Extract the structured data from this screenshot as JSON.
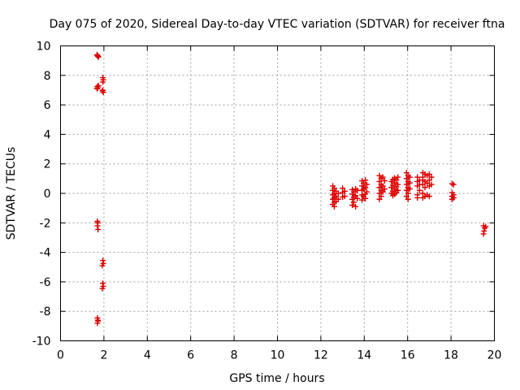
{
  "chart_data": {
    "type": "scatter",
    "title": "Day 075 of 2020, Sidereal Day-to-day VTEC variation (SDTVAR) for receiver ftna",
    "xlabel": "GPS time / hours",
    "ylabel": "SDTVAR / TECUs",
    "xlim": [
      0,
      20
    ],
    "ylim": [
      -10,
      10
    ],
    "xticks": [
      "0",
      "2",
      "4",
      "6",
      "8",
      "10",
      "12",
      "14",
      "16",
      "18",
      "20"
    ],
    "yticks": [
      "10",
      "8",
      "6",
      "4",
      "2",
      "0",
      "-2",
      "-4",
      "-6",
      "-8",
      "-10"
    ],
    "grid": true,
    "marker": "plus",
    "series_color": "#dd0000",
    "series": [
      {
        "name": "SDTVAR",
        "points": [
          [
            1.7,
            9.35
          ],
          [
            1.72,
            9.3
          ],
          [
            1.75,
            9.25
          ],
          [
            1.68,
            9.4
          ],
          [
            1.7,
            7.25
          ],
          [
            1.72,
            7.15
          ],
          [
            1.75,
            7.3
          ],
          [
            1.68,
            7.1
          ],
          [
            1.95,
            7.85
          ],
          [
            1.97,
            7.7
          ],
          [
            1.95,
            7.55
          ],
          [
            1.93,
            6.95
          ],
          [
            1.97,
            6.85
          ],
          [
            1.95,
            7.0
          ],
          [
            1.7,
            -1.9
          ],
          [
            1.72,
            -2.0
          ],
          [
            1.7,
            -2.2
          ],
          [
            1.73,
            -2.45
          ],
          [
            1.95,
            -4.55
          ],
          [
            1.97,
            -4.75
          ],
          [
            1.93,
            -4.9
          ],
          [
            1.95,
            -6.1
          ],
          [
            1.97,
            -6.3
          ],
          [
            1.93,
            -6.45
          ],
          [
            1.7,
            -8.45
          ],
          [
            1.72,
            -8.6
          ],
          [
            1.7,
            -8.8
          ],
          [
            1.73,
            -8.65
          ],
          [
            12.55,
            0.5
          ],
          [
            12.55,
            0.2
          ],
          [
            12.55,
            -0.1
          ],
          [
            12.55,
            -0.4
          ],
          [
            12.55,
            -0.75
          ],
          [
            12.62,
            0.35
          ],
          [
            12.62,
            0.0
          ],
          [
            12.62,
            -0.3
          ],
          [
            12.62,
            -0.6
          ],
          [
            12.62,
            -0.9
          ],
          [
            12.7,
            0.15
          ],
          [
            12.7,
            -0.2
          ],
          [
            12.7,
            -0.55
          ],
          [
            12.8,
            0.0
          ],
          [
            12.8,
            -0.4
          ],
          [
            13.0,
            0.35
          ],
          [
            13.0,
            0.05
          ],
          [
            13.0,
            -0.25
          ],
          [
            13.1,
            0.15
          ],
          [
            13.1,
            -0.2
          ],
          [
            13.45,
            0.25
          ],
          [
            13.45,
            -0.05
          ],
          [
            13.45,
            -0.4
          ],
          [
            13.45,
            -0.8
          ],
          [
            13.52,
            0.1
          ],
          [
            13.52,
            -0.25
          ],
          [
            13.52,
            -0.6
          ],
          [
            13.6,
            0.3
          ],
          [
            13.6,
            -0.15
          ],
          [
            13.6,
            -0.9
          ],
          [
            13.68,
            0.2
          ],
          [
            13.68,
            -0.35
          ],
          [
            13.9,
            0.85
          ],
          [
            13.9,
            0.5
          ],
          [
            13.9,
            0.2
          ],
          [
            13.9,
            -0.1
          ],
          [
            13.9,
            -0.45
          ],
          [
            13.97,
            0.7
          ],
          [
            13.97,
            0.3
          ],
          [
            13.97,
            -0.2
          ],
          [
            14.05,
            0.9
          ],
          [
            14.05,
            0.4
          ],
          [
            14.05,
            -0.05
          ],
          [
            14.05,
            -0.35
          ],
          [
            14.12,
            0.6
          ],
          [
            14.12,
            0.1
          ],
          [
            14.7,
            1.2
          ],
          [
            14.7,
            0.8
          ],
          [
            14.7,
            0.4
          ],
          [
            14.7,
            0.0
          ],
          [
            14.7,
            -0.4
          ],
          [
            14.78,
            1.0
          ],
          [
            14.78,
            0.6
          ],
          [
            14.78,
            0.2
          ],
          [
            14.78,
            -0.2
          ],
          [
            14.86,
            1.1
          ],
          [
            14.86,
            0.5
          ],
          [
            14.86,
            0.1
          ],
          [
            14.94,
            0.85
          ],
          [
            14.94,
            0.3
          ],
          [
            15.25,
            0.8
          ],
          [
            15.25,
            0.4
          ],
          [
            15.25,
            0.0
          ],
          [
            15.32,
            0.95
          ],
          [
            15.32,
            0.55
          ],
          [
            15.32,
            0.15
          ],
          [
            15.32,
            -0.15
          ],
          [
            15.4,
            1.05
          ],
          [
            15.4,
            0.7
          ],
          [
            15.4,
            0.3
          ],
          [
            15.4,
            -0.05
          ],
          [
            15.48,
            0.9
          ],
          [
            15.48,
            0.45
          ],
          [
            15.48,
            0.05
          ],
          [
            15.55,
            1.1
          ],
          [
            15.55,
            0.6
          ],
          [
            15.55,
            0.2
          ],
          [
            15.95,
            1.4
          ],
          [
            15.95,
            1.0
          ],
          [
            15.95,
            0.6
          ],
          [
            15.95,
            0.2
          ],
          [
            15.95,
            -0.2
          ],
          [
            16.02,
            1.2
          ],
          [
            16.02,
            0.8
          ],
          [
            16.02,
            0.4
          ],
          [
            16.02,
            0.0
          ],
          [
            16.02,
            -0.4
          ],
          [
            16.1,
            1.1
          ],
          [
            16.1,
            0.7
          ],
          [
            16.1,
            0.3
          ],
          [
            16.45,
            1.1
          ],
          [
            16.45,
            0.8
          ],
          [
            16.45,
            0.5
          ],
          [
            16.45,
            -0.1
          ],
          [
            16.45,
            -0.3
          ],
          [
            16.55,
            0.9
          ],
          [
            16.55,
            0.6
          ],
          [
            16.55,
            0.2
          ],
          [
            16.7,
            1.4
          ],
          [
            16.7,
            1.1
          ],
          [
            16.7,
            0.9
          ],
          [
            16.7,
            0.6
          ],
          [
            16.7,
            0.0
          ],
          [
            16.7,
            -0.3
          ],
          [
            16.8,
            1.3
          ],
          [
            16.8,
            0.8
          ],
          [
            16.8,
            0.4
          ],
          [
            16.8,
            -0.2
          ],
          [
            16.9,
            1.2
          ],
          [
            16.9,
            0.7
          ],
          [
            16.9,
            -0.1
          ],
          [
            17.0,
            1.3
          ],
          [
            17.0,
            0.9
          ],
          [
            17.0,
            0.5
          ],
          [
            17.0,
            -0.2
          ],
          [
            17.1,
            1.1
          ],
          [
            17.1,
            0.6
          ],
          [
            18.05,
            0.65
          ],
          [
            18.05,
            0.05
          ],
          [
            18.05,
            -0.2
          ],
          [
            18.05,
            -0.4
          ],
          [
            18.12,
            0.6
          ],
          [
            18.12,
            -0.1
          ],
          [
            18.12,
            -0.3
          ],
          [
            19.5,
            -2.2
          ],
          [
            19.55,
            -2.35
          ],
          [
            19.52,
            -2.55
          ],
          [
            19.5,
            -2.75
          ],
          [
            19.6,
            -2.25
          ]
        ]
      }
    ]
  }
}
